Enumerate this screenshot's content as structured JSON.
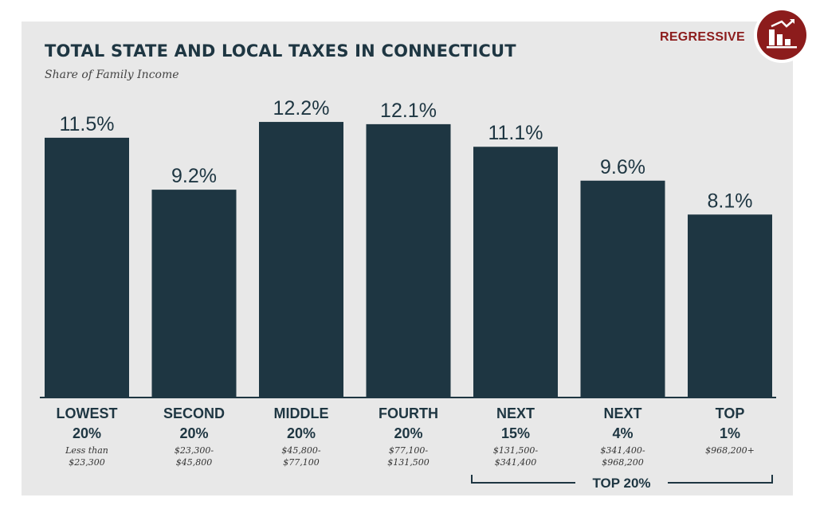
{
  "header": {
    "title": "TOTAL STATE AND LOCAL TAXES IN CONNECTICUT",
    "subtitle": "Share of Family Income",
    "badge_label": "REGRESSIVE"
  },
  "colors": {
    "bar": "#1e3642",
    "accent": "#8c1c1c",
    "panel": "#e8e8e8"
  },
  "icons": {
    "badge": "bar-chart-trend-icon"
  },
  "chart_data": {
    "type": "bar",
    "title": "TOTAL STATE AND LOCAL TAXES IN CONNECTICUT",
    "subtitle": "Share of Family Income",
    "categories": [
      {
        "line1": "LOWEST",
        "line2": "20%",
        "range": [
          "Less than",
          "$23,300"
        ]
      },
      {
        "line1": "SECOND",
        "line2": "20%",
        "range": [
          "$23,300-",
          "$45,800"
        ]
      },
      {
        "line1": "MIDDLE",
        "line2": "20%",
        "range": [
          "$45,800-",
          "$77,100"
        ]
      },
      {
        "line1": "FOURTH",
        "line2": "20%",
        "range": [
          "$77,100-",
          "$131,500"
        ]
      },
      {
        "line1": "NEXT",
        "line2": "15%",
        "range": [
          "$131,500-",
          "$341,400"
        ]
      },
      {
        "line1": "NEXT",
        "line2": "4%",
        "range": [
          "$341,400-",
          "$968,200"
        ]
      },
      {
        "line1": "TOP",
        "line2": "1%",
        "range": [
          "$968,200+"
        ]
      }
    ],
    "values": [
      11.5,
      9.2,
      12.2,
      12.1,
      11.1,
      9.6,
      8.1
    ],
    "value_labels": [
      "11.5%",
      "9.2%",
      "12.2%",
      "12.1%",
      "11.1%",
      "9.6%",
      "8.1%"
    ],
    "ylim": [
      0,
      14.6
    ],
    "grid": false,
    "bracket": {
      "label": "TOP 20%",
      "from_index": 4,
      "to_index": 6
    }
  }
}
